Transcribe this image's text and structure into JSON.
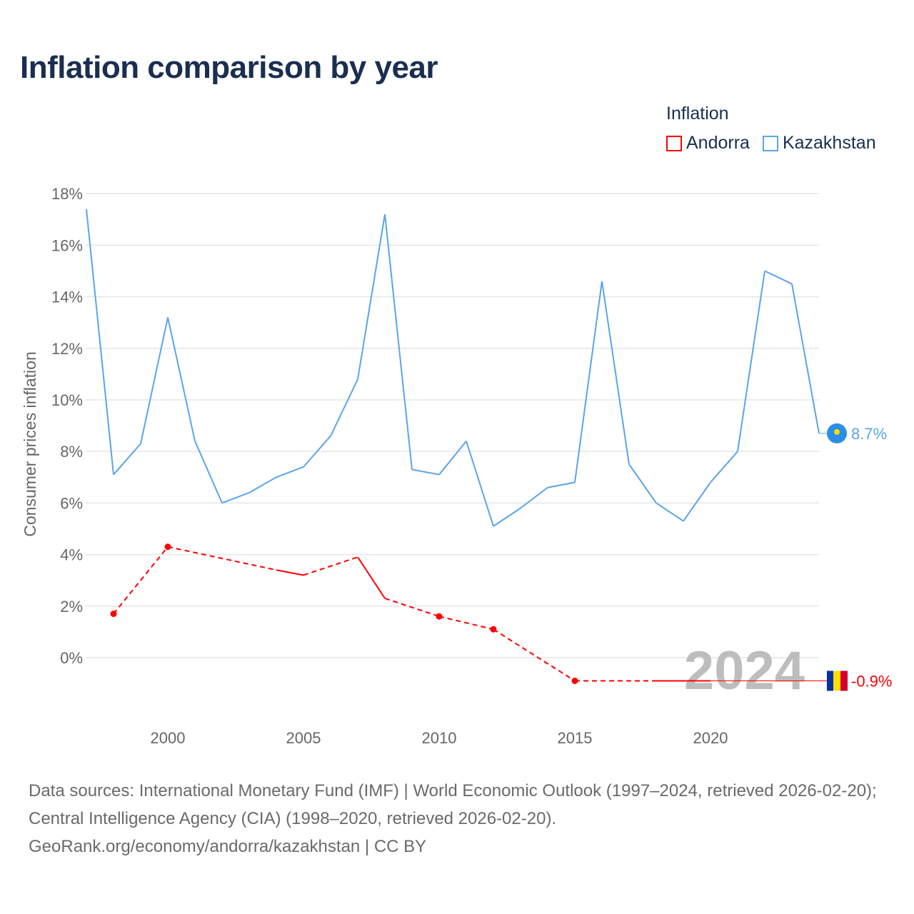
{
  "title": "Inflation comparison by year",
  "legend_title": "Inflation",
  "footer": {
    "sources": "Data sources: International Monetary Fund (IMF) | World Economic Outlook (1997–2024, retrieved 2026-02-20); Central Intelligence Agency (CIA) (1998–2020, retrieved 2026-02-20).",
    "link": "GeoRank.org/economy/andorra/kazakhstan | CC BY"
  },
  "chart_data": {
    "type": "line",
    "title": "Inflation comparison by year",
    "ylabel": "Consumer prices inflation",
    "xlabel": "",
    "xlim": [
      1997,
      2024
    ],
    "ylim": [
      -2.5,
      18
    ],
    "yticks": [
      0,
      2,
      4,
      6,
      8,
      10,
      12,
      14,
      16,
      18
    ],
    "ytick_labels": [
      "0%",
      "2%",
      "4%",
      "6%",
      "8%",
      "10%",
      "12%",
      "14%",
      "16%",
      "18%"
    ],
    "xticks": [
      2000,
      2005,
      2010,
      2015,
      2020
    ],
    "xtick_labels": [
      "2000",
      "2005",
      "2010",
      "2015",
      "2020"
    ],
    "grid": true,
    "legend_position": "top-right",
    "year_watermark": "2024",
    "series": [
      {
        "name": "Andorra",
        "color": "#ff0000",
        "end_label": "-0.9%",
        "x": [
          1998,
          2000,
          2004,
          2005,
          2007,
          2008,
          2010,
          2012,
          2015,
          2018,
          2019,
          2020
        ],
        "y": [
          1.7,
          4.3,
          3.4,
          3.2,
          3.9,
          2.3,
          1.6,
          1.1,
          -0.9,
          -0.9,
          -0.9,
          -0.9
        ]
      },
      {
        "name": "Kazakhstan",
        "color": "#5aa5ea",
        "end_label": "8.7%",
        "x": [
          1997,
          1998,
          1999,
          2000,
          2001,
          2002,
          2003,
          2004,
          2005,
          2006,
          2007,
          2008,
          2009,
          2010,
          2011,
          2012,
          2013,
          2014,
          2015,
          2016,
          2017,
          2018,
          2019,
          2020,
          2021,
          2022,
          2023,
          2024
        ],
        "y": [
          17.4,
          7.1,
          8.3,
          13.2,
          8.4,
          6.0,
          6.4,
          7.0,
          7.4,
          8.6,
          10.8,
          17.2,
          7.3,
          7.1,
          8.4,
          5.1,
          5.8,
          6.6,
          6.8,
          14.6,
          7.5,
          6.0,
          5.3,
          6.8,
          8.0,
          15.0,
          14.5,
          8.7
        ]
      }
    ]
  }
}
